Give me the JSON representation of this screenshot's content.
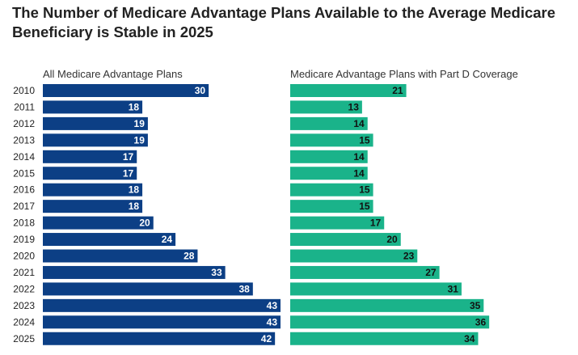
{
  "title": "The Number of Medicare Advantage Plans Available to the Average Medicare Beneficiary is Stable in 2025",
  "colors": {
    "left_bar": "#0c3f85",
    "right_bar": "#1ab38a"
  },
  "chart_data": {
    "type": "bar",
    "orientation": "horizontal",
    "categories": [
      "2010",
      "2011",
      "2012",
      "2013",
      "2014",
      "2015",
      "2016",
      "2017",
      "2018",
      "2019",
      "2020",
      "2021",
      "2022",
      "2023",
      "2024",
      "2025"
    ],
    "series": [
      {
        "name": "All Medicare Advantage Plans",
        "values": [
          30,
          18,
          19,
          19,
          17,
          17,
          18,
          18,
          20,
          24,
          28,
          33,
          38,
          43,
          43,
          42
        ]
      },
      {
        "name": "Medicare Advantage Plans with Part D Coverage",
        "values": [
          21,
          13,
          14,
          15,
          14,
          14,
          15,
          15,
          17,
          20,
          23,
          27,
          31,
          35,
          36,
          34
        ]
      }
    ],
    "xlim": [
      0,
      43
    ],
    "xlabel": "",
    "ylabel": ""
  }
}
